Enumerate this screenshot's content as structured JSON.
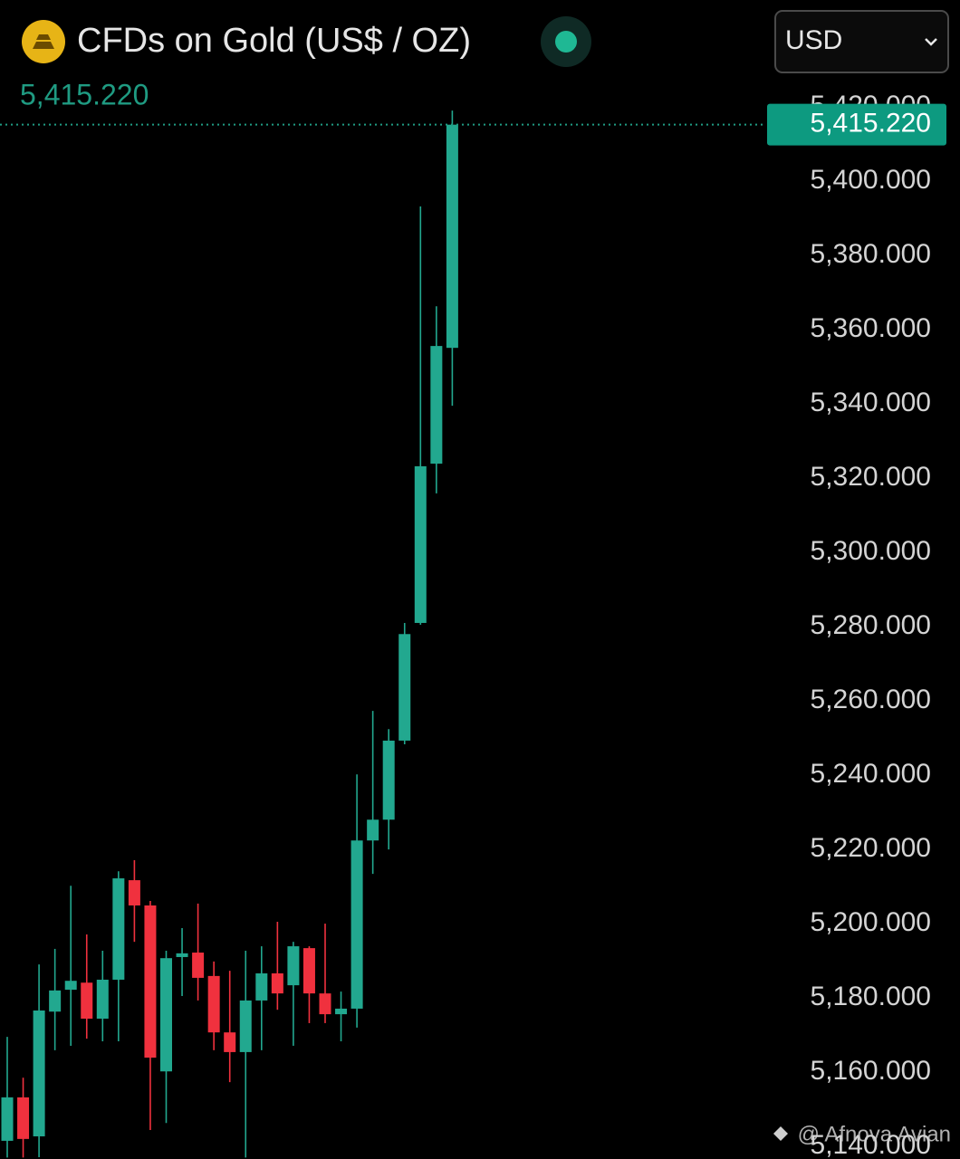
{
  "chart_data": {
    "type": "candlestick",
    "title": "CFDs on Gold (US$ / OZ)",
    "currency": "USD",
    "last_price": {
      "value": 5415.22,
      "label": "5,415.220"
    },
    "up_color": "#22a88f",
    "down_color": "#f0313e",
    "open": [
      5141.5,
      5153.2,
      5142.7,
      5176.3,
      5182.2,
      5184.1,
      5174.4,
      5184.9,
      5211.7,
      5204.9,
      5160.2,
      5191.0,
      5192.2,
      5185.9,
      5170.7,
      5165.4,
      5179.3,
      5186.6,
      5183.4,
      5193.4,
      5181.2,
      5175.6,
      5177.1,
      5222.4,
      5228.0,
      5249.3,
      5281.0,
      5323.9,
      5355.1
    ],
    "high": [
      5169.5,
      5158.5,
      5189.0,
      5193.2,
      5210.2,
      5197.1,
      5192.7,
      5214.1,
      5217.1,
      5206.1,
      5192.7,
      5198.8,
      5205.4,
      5189.8,
      5187.3,
      5192.7,
      5193.9,
      5200.5,
      5195.1,
      5193.9,
      5200.0,
      5181.7,
      5240.2,
      5257.3,
      5252.4,
      5281.0,
      5393.2,
      5366.3,
      5419.0
    ],
    "low": [
      5137.0,
      5137.0,
      5137.1,
      5165.9,
      5167.1,
      5169.0,
      5168.3,
      5168.3,
      5195.1,
      5144.4,
      5146.3,
      5180.5,
      5179.3,
      5165.9,
      5157.3,
      5137.0,
      5165.9,
      5176.8,
      5167.1,
      5173.2,
      5173.2,
      5168.3,
      5172.0,
      5213.4,
      5220.0,
      5248.3,
      5280.5,
      5315.9,
      5339.5
    ],
    "close": [
      5153.2,
      5142.0,
      5176.6,
      5182.0,
      5184.6,
      5174.4,
      5184.9,
      5212.2,
      5204.9,
      5163.9,
      5190.7,
      5192.0,
      5185.4,
      5170.7,
      5165.4,
      5179.3,
      5186.6,
      5181.2,
      5193.9,
      5181.2,
      5175.6,
      5177.1,
      5222.4,
      5228.0,
      5249.3,
      5278.0,
      5323.2,
      5355.6,
      5415.22
    ],
    "ylim": [
      5136.6,
      5448.8
    ],
    "yticks": [
      {
        "value": 5140,
        "label": "5,140.000"
      },
      {
        "value": 5160,
        "label": "5,160.000"
      },
      {
        "value": 5180,
        "label": "5,180.000"
      },
      {
        "value": 5200,
        "label": "5,200.000"
      },
      {
        "value": 5220,
        "label": "5,220.000"
      },
      {
        "value": 5240,
        "label": "5,240.000"
      },
      {
        "value": 5260,
        "label": "5,260.000"
      },
      {
        "value": 5280,
        "label": "5,280.000"
      },
      {
        "value": 5300,
        "label": "5,300.000"
      },
      {
        "value": 5320,
        "label": "5,320.000"
      },
      {
        "value": 5340,
        "label": "5,340.000"
      },
      {
        "value": 5360,
        "label": "5,360.000"
      },
      {
        "value": 5380,
        "label": "5,380.000"
      },
      {
        "value": 5400,
        "label": "5,400.000"
      },
      {
        "value": 5420,
        "label": "5,420.000"
      }
    ],
    "watermark": "@ Afnova Avian"
  }
}
